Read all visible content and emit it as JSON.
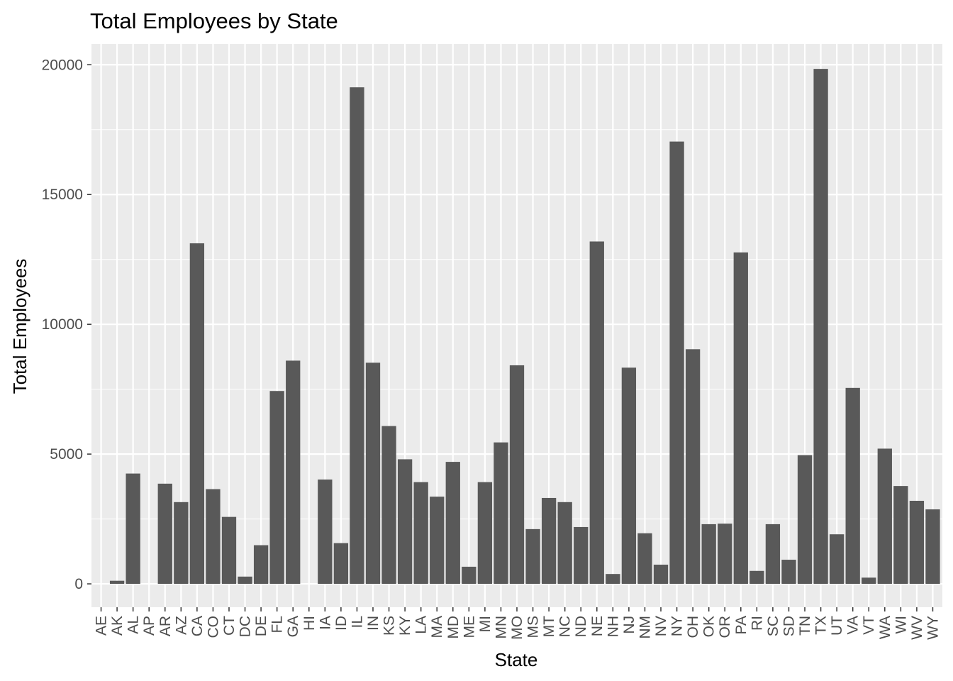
{
  "chart_data": {
    "type": "bar",
    "title": "Total Employees by State",
    "xlabel": "State",
    "ylabel": "Total Employees",
    "categories": [
      "AE",
      "AK",
      "AL",
      "AP",
      "AR",
      "AZ",
      "CA",
      "CO",
      "CT",
      "DC",
      "DE",
      "FL",
      "GA",
      "HI",
      "IA",
      "ID",
      "IL",
      "IN",
      "KS",
      "KY",
      "LA",
      "MA",
      "MD",
      "ME",
      "MI",
      "MN",
      "MO",
      "MS",
      "MT",
      "NC",
      "ND",
      "NE",
      "NH",
      "NJ",
      "NM",
      "NV",
      "NY",
      "OH",
      "OK",
      "OR",
      "PA",
      "RI",
      "SC",
      "SD",
      "TN",
      "TX",
      "UT",
      "VA",
      "VT",
      "WA",
      "WI",
      "WV",
      "WY"
    ],
    "values": [
      0,
      120,
      4250,
      0,
      3860,
      3150,
      13120,
      3650,
      2580,
      280,
      1490,
      7430,
      8600,
      0,
      4020,
      1570,
      19130,
      8520,
      6080,
      4800,
      3920,
      3360,
      4700,
      660,
      3920,
      5450,
      8420,
      2110,
      3310,
      3150,
      2190,
      13190,
      380,
      8330,
      1950,
      740,
      17040,
      9040,
      2300,
      2320,
      12770,
      500,
      2300,
      930,
      4960,
      19840,
      1910,
      7550,
      240,
      5210,
      3770,
      3200,
      2870
    ],
    "ylim": [
      -900,
      20800
    ],
    "yticks": [
      0,
      5000,
      10000,
      15000,
      20000
    ],
    "ytick_labels": [
      "0",
      "5000",
      "10000",
      "15000",
      "20000"
    ],
    "bar_color": "#595959",
    "panel_background": "#ebebeb",
    "gridline_color": "#ffffff",
    "grid": true,
    "legend": "none"
  }
}
